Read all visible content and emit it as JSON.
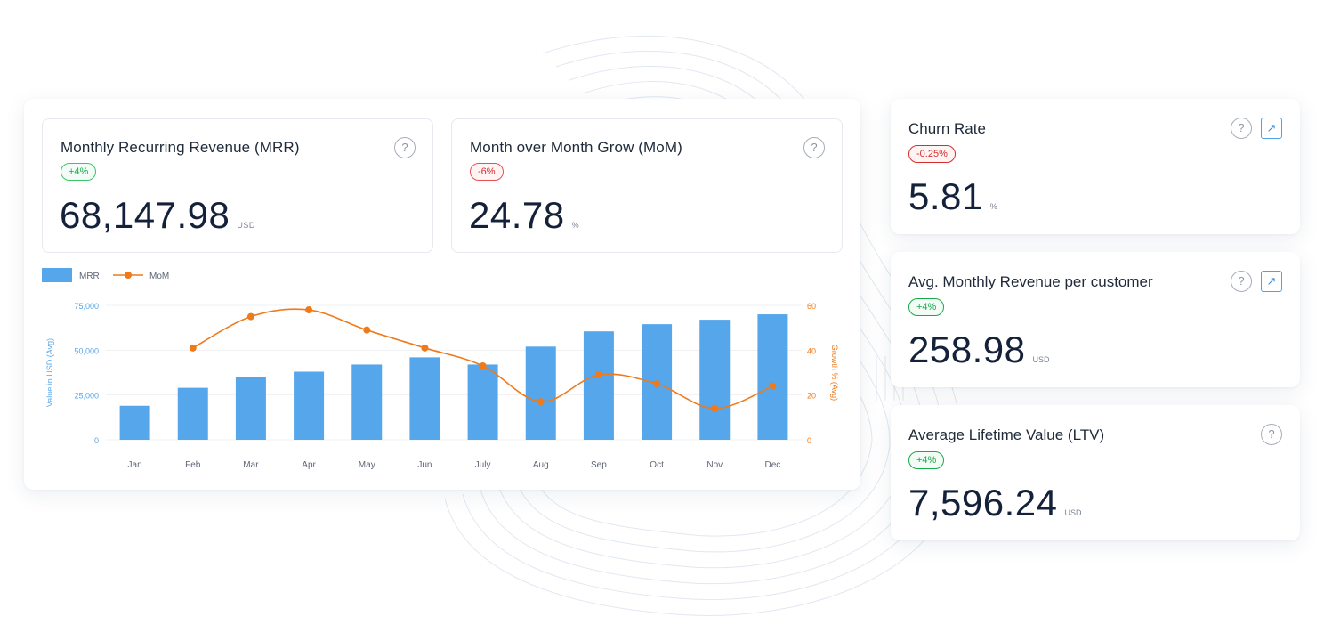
{
  "colors": {
    "bar": "#55a6ea",
    "line": "#f07a1a",
    "left_axis": "#55a6ea",
    "right_axis": "#f07a1a",
    "positive": "#1aa94a",
    "negative": "#d62e2e"
  },
  "kpis": {
    "mrr": {
      "title": "Monthly Recurring Revenue (MRR)",
      "badge": "+4%",
      "value": "68,147.98",
      "unit": "USD",
      "help": "?"
    },
    "mom": {
      "title": "Month over Month Grow (MoM)",
      "badge": "-6%",
      "value": "24.78",
      "unit": "%",
      "help": "?"
    }
  },
  "side": {
    "churn": {
      "title": "Churn Rate",
      "badge": "-0.25%",
      "value": "5.81",
      "unit": "%",
      "help": "?",
      "link": "↗"
    },
    "avg": {
      "title": "Avg. Monthly Revenue per customer",
      "badge": "+4%",
      "value": "258.98",
      "unit": "USD",
      "help": "?",
      "link": "↗"
    },
    "ltv": {
      "title": "Average Lifetime Value (LTV)",
      "badge": "+4%",
      "value": "7,596.24",
      "unit": "USD",
      "help": "?"
    }
  },
  "chart_data": {
    "type": "bar",
    "categories": [
      "Jan",
      "Feb",
      "Mar",
      "Apr",
      "May",
      "Jun",
      "July",
      "Aug",
      "Sep",
      "Oct",
      "Nov",
      "Dec"
    ],
    "series": [
      {
        "name": "MRR",
        "type": "bar",
        "axis": "left",
        "values": [
          19000,
          29000,
          35000,
          38000,
          42000,
          46000,
          42000,
          52000,
          60500,
          64500,
          67000,
          70000
        ]
      },
      {
        "name": "MoM",
        "type": "line",
        "axis": "right",
        "values": [
          null,
          41,
          55,
          58,
          49,
          41,
          33,
          17,
          29,
          25,
          14,
          24
        ]
      }
    ],
    "ylabel": "Value in USD (Avg)",
    "y2label": "Growth % (Avg)",
    "ylim": [
      0,
      75000
    ],
    "y2lim": [
      0,
      60
    ],
    "yticks": [
      "0",
      "25,000",
      "50,000",
      "75,000"
    ],
    "y2ticks": [
      "0",
      "20",
      "40",
      "60"
    ],
    "legend_position": "top-left",
    "grid": true
  }
}
